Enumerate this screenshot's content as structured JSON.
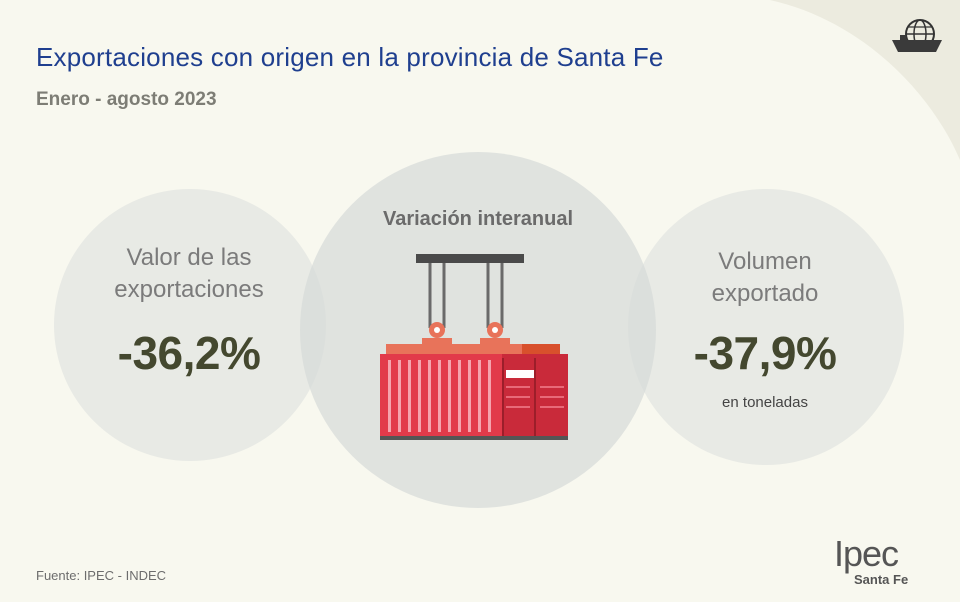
{
  "header": {
    "title": "Exportaciones con origen en la provincia de Santa Fe",
    "subtitle": "Enero - agosto 2023"
  },
  "center": {
    "title": "Variación interanual"
  },
  "left_metric": {
    "label": "Valor de las\nexportaciones",
    "value": "-36,2%"
  },
  "right_metric": {
    "label": "Volumen\nexportado",
    "value": "-37,9%",
    "unit": "en toneladas"
  },
  "footer": {
    "source": "Fuente: IPEC - INDEC",
    "logo_main": "Ipec",
    "logo_sub": "Santa Fe"
  },
  "icons": {
    "top_right": "globe-ship-icon",
    "center": "shipping-container-crane-icon"
  },
  "colors": {
    "background": "#f8f8ef",
    "title": "#1f3f8f",
    "value": "#44482f",
    "container_red": "#e23a4a",
    "container_orange": "#e8735a"
  }
}
